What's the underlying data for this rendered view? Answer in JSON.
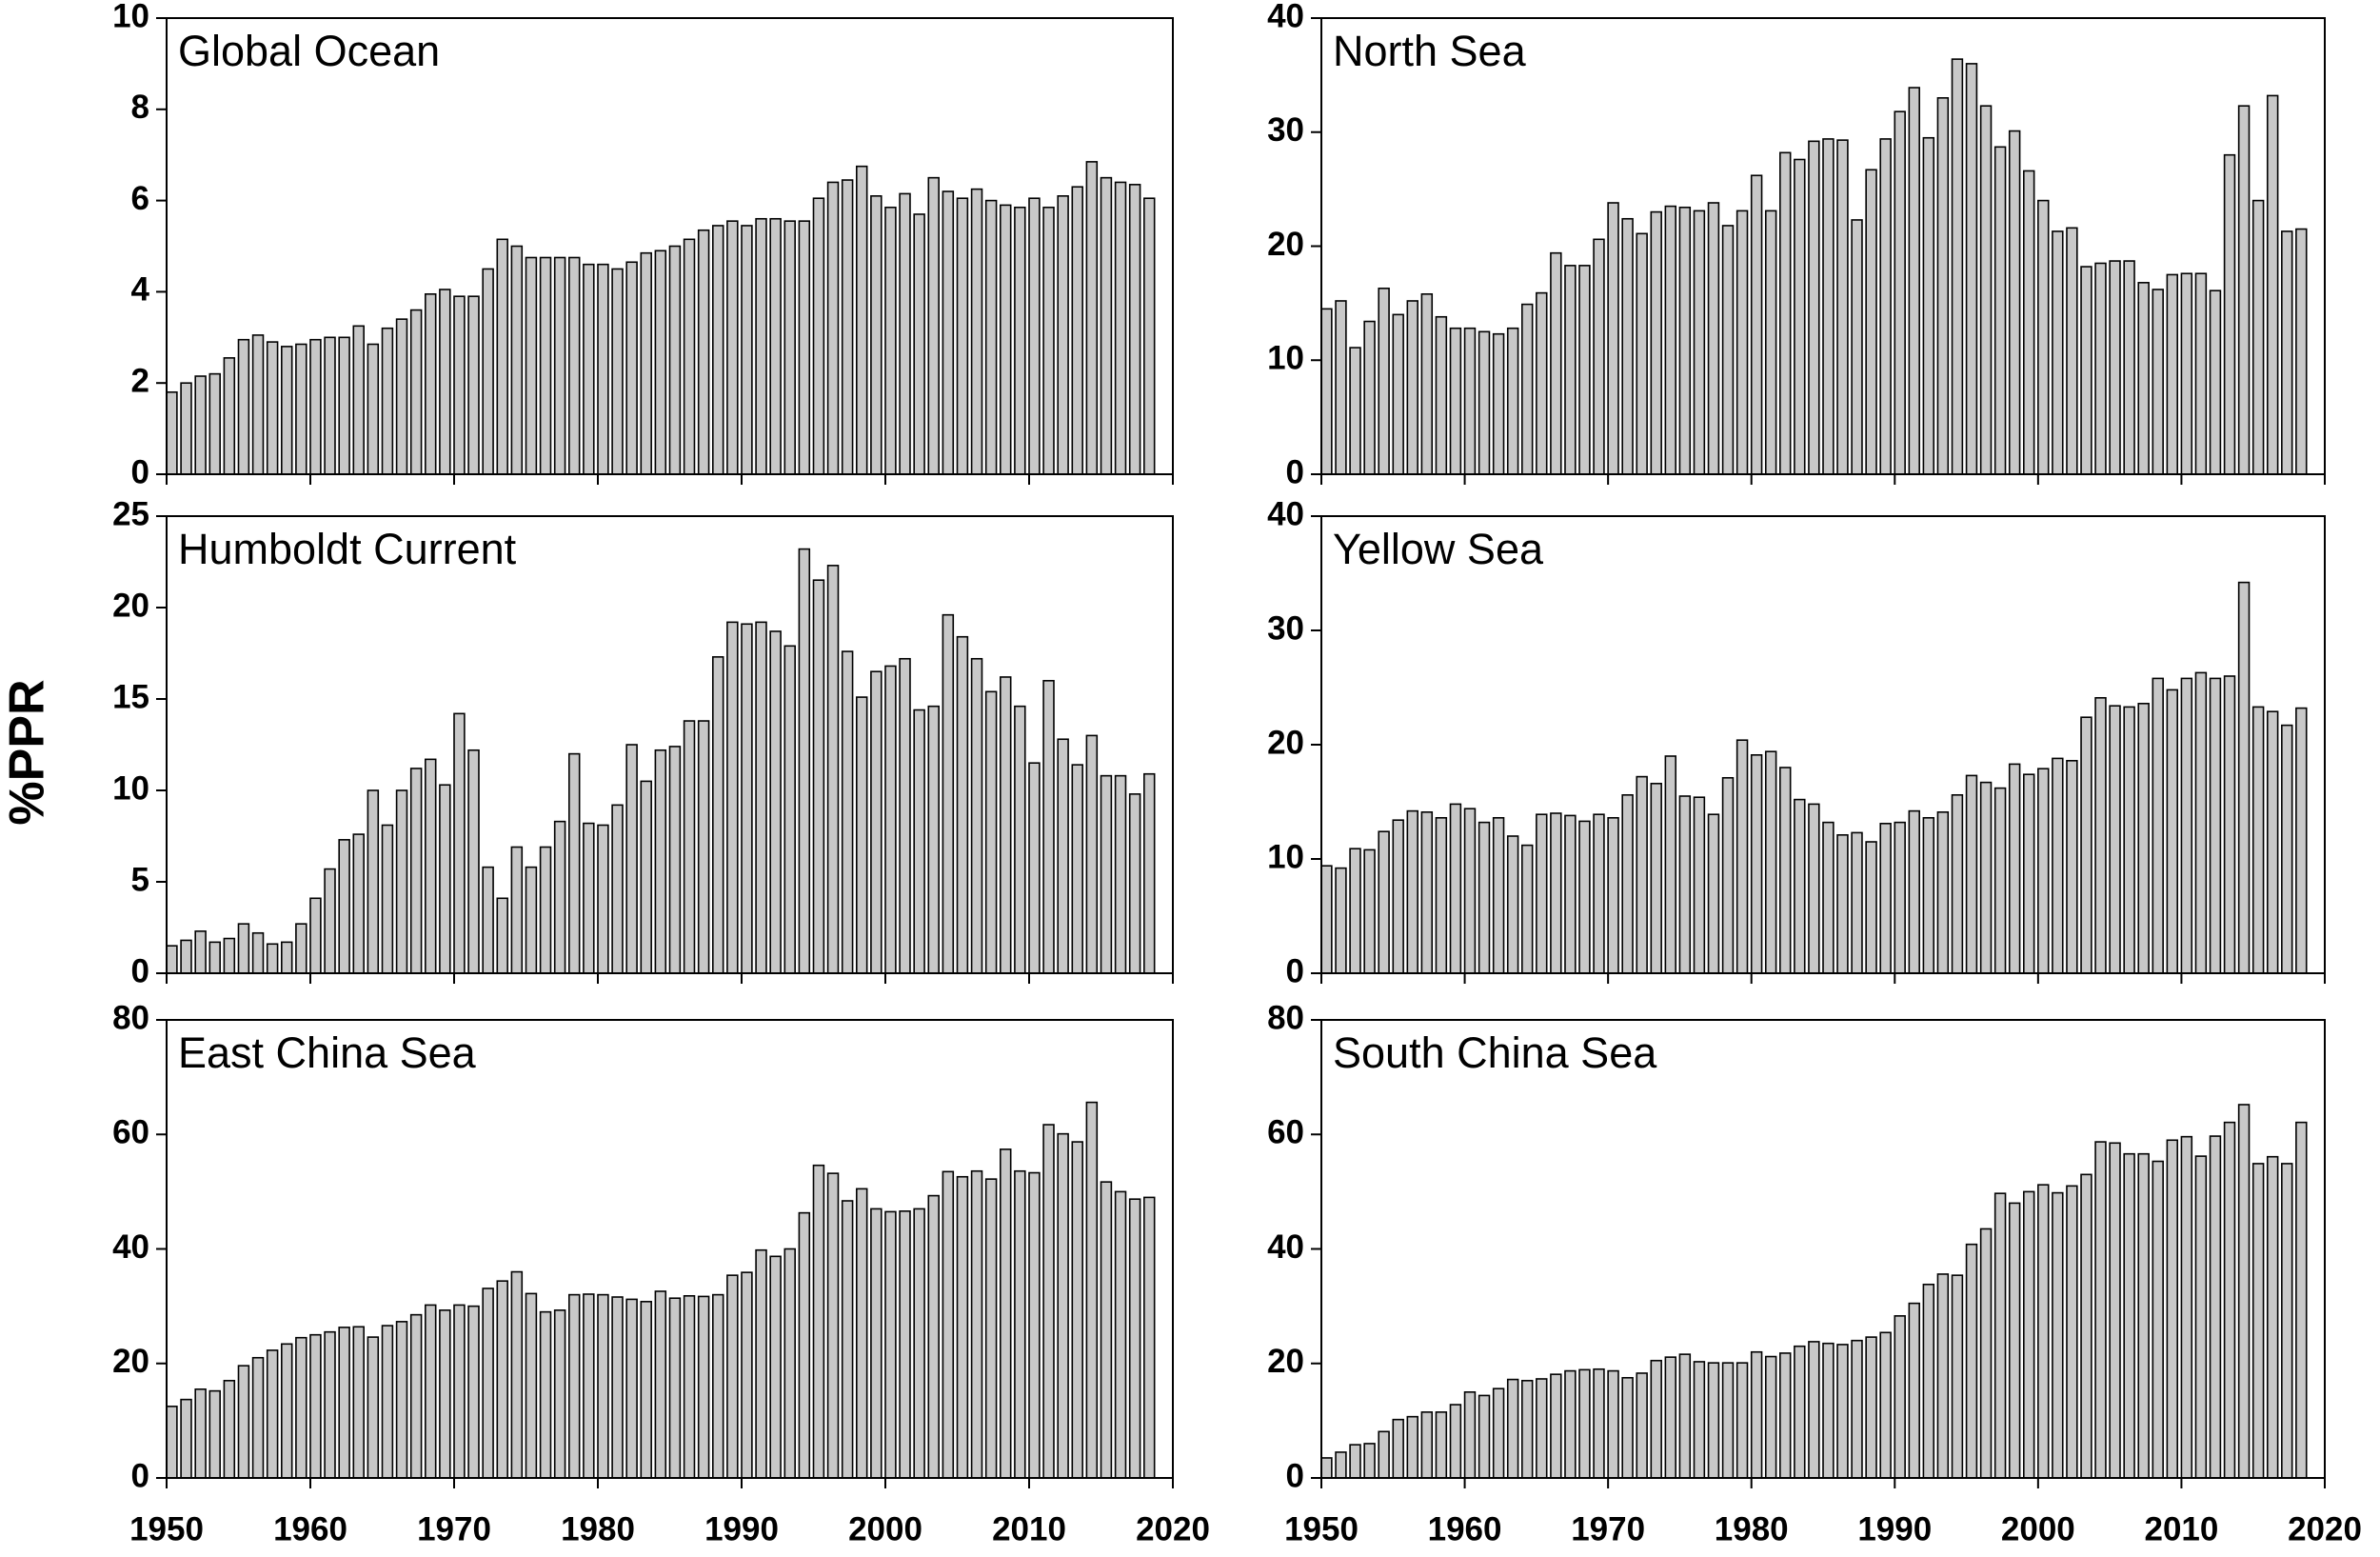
{
  "ylabel": "%PPR",
  "chart_data": [
    {
      "type": "bar",
      "title": "Global Ocean",
      "color": "#c8c8c8",
      "xlim": [
        1950,
        2020
      ],
      "xticks": [
        1950,
        1960,
        1970,
        1980,
        1990,
        2000,
        2010,
        2020
      ],
      "ylim": [
        0,
        10
      ],
      "yticks": [
        0,
        2,
        4,
        6,
        8,
        10
      ],
      "x": [
        1950,
        1951,
        1952,
        1953,
        1954,
        1955,
        1956,
        1957,
        1958,
        1959,
        1960,
        1961,
        1962,
        1963,
        1964,
        1965,
        1966,
        1967,
        1968,
        1969,
        1970,
        1971,
        1972,
        1973,
        1974,
        1975,
        1976,
        1977,
        1978,
        1979,
        1980,
        1981,
        1982,
        1983,
        1984,
        1985,
        1986,
        1987,
        1988,
        1989,
        1990,
        1991,
        1992,
        1993,
        1994,
        1995,
        1996,
        1997,
        1998,
        1999,
        2000,
        2001,
        2002,
        2003,
        2004,
        2005,
        2006,
        2007,
        2008,
        2009,
        2010,
        2011,
        2012,
        2013,
        2014,
        2015,
        2016,
        2017,
        2018
      ],
      "values": [
        1.8,
        2.0,
        2.15,
        2.2,
        2.55,
        2.95,
        3.05,
        2.9,
        2.8,
        2.85,
        2.95,
        3.0,
        3.0,
        3.25,
        2.85,
        3.2,
        3.4,
        3.6,
        3.95,
        4.05,
        3.9,
        3.9,
        4.5,
        5.15,
        5.0,
        4.75,
        4.75,
        4.75,
        4.75,
        4.6,
        4.6,
        4.5,
        4.65,
        4.85,
        4.9,
        5.0,
        5.15,
        5.35,
        5.45,
        5.55,
        5.45,
        5.6,
        5.6,
        5.55,
        5.55,
        6.05,
        6.4,
        6.45,
        6.75,
        6.1,
        5.85,
        6.15,
        5.7,
        6.5,
        6.2,
        6.05,
        6.25,
        6.0,
        5.9,
        5.85,
        6.05,
        5.85,
        6.1,
        6.3,
        6.85,
        6.5,
        6.4,
        6.35,
        6.05
      ]
    },
    {
      "type": "bar",
      "title": "North Sea",
      "color": "#c8c8c8",
      "xlim": [
        1950,
        2020
      ],
      "xticks": [
        1950,
        1960,
        1970,
        1980,
        1990,
        2000,
        2010,
        2020
      ],
      "ylim": [
        0,
        40
      ],
      "yticks": [
        0,
        10,
        20,
        30,
        40
      ],
      "x": [
        1950,
        1951,
        1952,
        1953,
        1954,
        1955,
        1956,
        1957,
        1958,
        1959,
        1960,
        1961,
        1962,
        1963,
        1964,
        1965,
        1966,
        1967,
        1968,
        1969,
        1970,
        1971,
        1972,
        1973,
        1974,
        1975,
        1976,
        1977,
        1978,
        1979,
        1980,
        1981,
        1982,
        1983,
        1984,
        1985,
        1986,
        1987,
        1988,
        1989,
        1990,
        1991,
        1992,
        1993,
        1994,
        1995,
        1996,
        1997,
        1998,
        1999,
        2000,
        2001,
        2002,
        2003,
        2004,
        2005,
        2006,
        2007,
        2008,
        2009,
        2010,
        2011,
        2012,
        2013,
        2014,
        2015,
        2016,
        2017,
        2018
      ],
      "values": [
        14.5,
        15.2,
        11.1,
        13.4,
        16.3,
        14.0,
        15.2,
        15.8,
        13.8,
        12.8,
        12.8,
        12.5,
        12.3,
        12.8,
        14.9,
        15.9,
        19.4,
        18.3,
        18.3,
        20.6,
        23.8,
        22.4,
        21.1,
        23.0,
        23.5,
        23.4,
        23.1,
        23.8,
        21.8,
        23.1,
        26.2,
        23.1,
        28.2,
        27.6,
        29.2,
        29.4,
        29.3,
        22.3,
        26.7,
        29.4,
        31.8,
        33.9,
        29.5,
        33.0,
        36.4,
        36.0,
        32.3,
        28.7,
        30.1,
        26.6,
        24.0,
        21.3,
        21.6,
        18.2,
        18.5,
        18.7,
        18.7,
        16.8,
        16.2,
        17.5,
        17.6,
        17.6,
        16.1,
        28.0,
        32.3,
        24.0,
        33.2,
        21.3,
        21.5
      ]
    },
    {
      "type": "bar",
      "title": "Humboldt Current",
      "color": "#c8c8c8",
      "xlim": [
        1950,
        2020
      ],
      "xticks": [
        1950,
        1960,
        1970,
        1980,
        1990,
        2000,
        2010,
        2020
      ],
      "ylim": [
        0,
        25
      ],
      "yticks": [
        0,
        5,
        10,
        15,
        20,
        25
      ],
      "x": [
        1950,
        1951,
        1952,
        1953,
        1954,
        1955,
        1956,
        1957,
        1958,
        1959,
        1960,
        1961,
        1962,
        1963,
        1964,
        1965,
        1966,
        1967,
        1968,
        1969,
        1970,
        1971,
        1972,
        1973,
        1974,
        1975,
        1976,
        1977,
        1978,
        1979,
        1980,
        1981,
        1982,
        1983,
        1984,
        1985,
        1986,
        1987,
        1988,
        1989,
        1990,
        1991,
        1992,
        1993,
        1994,
        1995,
        1996,
        1997,
        1998,
        1999,
        2000,
        2001,
        2002,
        2003,
        2004,
        2005,
        2006,
        2007,
        2008,
        2009,
        2010,
        2011,
        2012,
        2013,
        2014,
        2015,
        2016,
        2017,
        2018
      ],
      "values": [
        1.5,
        1.8,
        2.3,
        1.7,
        1.9,
        2.7,
        2.2,
        1.6,
        1.7,
        2.7,
        4.1,
        5.7,
        7.3,
        7.6,
        10.0,
        8.1,
        10.0,
        11.2,
        11.7,
        10.3,
        14.2,
        12.2,
        5.8,
        4.1,
        6.9,
        5.8,
        6.9,
        8.3,
        12.0,
        8.2,
        8.1,
        9.2,
        12.5,
        10.5,
        12.2,
        12.4,
        13.8,
        13.8,
        17.3,
        19.2,
        19.1,
        19.2,
        18.7,
        17.9,
        23.2,
        21.5,
        22.3,
        17.6,
        15.1,
        16.5,
        16.8,
        17.2,
        14.4,
        14.6,
        19.6,
        18.4,
        17.2,
        15.4,
        16.2,
        14.6,
        11.5,
        16.0,
        12.8,
        11.4,
        13.0,
        10.8,
        10.8,
        9.8,
        10.9
      ]
    },
    {
      "type": "bar",
      "title": "Yellow Sea",
      "color": "#c8c8c8",
      "xlim": [
        1950,
        2020
      ],
      "xticks": [
        1950,
        1960,
        1970,
        1980,
        1990,
        2000,
        2010,
        2020
      ],
      "ylim": [
        0,
        40
      ],
      "yticks": [
        0,
        10,
        20,
        30,
        40
      ],
      "x": [
        1950,
        1951,
        1952,
        1953,
        1954,
        1955,
        1956,
        1957,
        1958,
        1959,
        1960,
        1961,
        1962,
        1963,
        1964,
        1965,
        1966,
        1967,
        1968,
        1969,
        1970,
        1971,
        1972,
        1973,
        1974,
        1975,
        1976,
        1977,
        1978,
        1979,
        1980,
        1981,
        1982,
        1983,
        1984,
        1985,
        1986,
        1987,
        1988,
        1989,
        1990,
        1991,
        1992,
        1993,
        1994,
        1995,
        1996,
        1997,
        1998,
        1999,
        2000,
        2001,
        2002,
        2003,
        2004,
        2005,
        2006,
        2007,
        2008,
        2009,
        2010,
        2011,
        2012,
        2013,
        2014,
        2015,
        2016,
        2017,
        2018
      ],
      "values": [
        9.4,
        9.2,
        10.9,
        10.8,
        12.4,
        13.4,
        14.2,
        14.1,
        13.6,
        14.8,
        14.4,
        13.2,
        13.6,
        12.0,
        11.2,
        13.9,
        14.0,
        13.8,
        13.3,
        13.9,
        13.6,
        15.6,
        17.2,
        16.6,
        19.0,
        15.5,
        15.4,
        13.9,
        17.1,
        20.4,
        19.1,
        19.4,
        18.0,
        15.2,
        14.8,
        13.2,
        12.1,
        12.3,
        11.5,
        13.1,
        13.2,
        14.2,
        13.6,
        14.1,
        15.6,
        17.3,
        16.7,
        16.2,
        18.3,
        17.4,
        17.9,
        18.8,
        18.6,
        22.4,
        24.1,
        23.4,
        23.3,
        23.6,
        25.8,
        24.8,
        25.8,
        26.3,
        25.8,
        26.0,
        34.2,
        23.3,
        22.9,
        21.7,
        23.2
      ]
    },
    {
      "type": "bar",
      "title": "East China Sea",
      "color": "#c8c8c8",
      "xlim": [
        1950,
        2020
      ],
      "xticks": [
        1950,
        1960,
        1970,
        1980,
        1990,
        2000,
        2010,
        2020
      ],
      "ylim": [
        0,
        80
      ],
      "yticks": [
        0,
        20,
        40,
        60,
        80
      ],
      "x": [
        1950,
        1951,
        1952,
        1953,
        1954,
        1955,
        1956,
        1957,
        1958,
        1959,
        1960,
        1961,
        1962,
        1963,
        1964,
        1965,
        1966,
        1967,
        1968,
        1969,
        1970,
        1971,
        1972,
        1973,
        1974,
        1975,
        1976,
        1977,
        1978,
        1979,
        1980,
        1981,
        1982,
        1983,
        1984,
        1985,
        1986,
        1987,
        1988,
        1989,
        1990,
        1991,
        1992,
        1993,
        1994,
        1995,
        1996,
        1997,
        1998,
        1999,
        2000,
        2001,
        2002,
        2003,
        2004,
        2005,
        2006,
        2007,
        2008,
        2009,
        2010,
        2011,
        2012,
        2013,
        2014,
        2015,
        2016,
        2017,
        2018
      ],
      "values": [
        12.5,
        13.7,
        15.5,
        15.2,
        17.0,
        19.6,
        21.0,
        22.3,
        23.4,
        24.5,
        25.0,
        25.5,
        26.3,
        26.4,
        24.6,
        26.6,
        27.3,
        28.5,
        30.2,
        29.3,
        30.2,
        30.0,
        33.1,
        34.4,
        36.0,
        32.2,
        29.0,
        29.3,
        32.0,
        32.1,
        32.0,
        31.6,
        31.2,
        30.8,
        32.6,
        31.4,
        31.8,
        31.7,
        32.0,
        35.4,
        35.9,
        39.8,
        38.7,
        40.0,
        46.3,
        54.6,
        53.2,
        48.4,
        50.5,
        47.0,
        46.5,
        46.6,
        47.0,
        49.3,
        53.5,
        52.6,
        53.6,
        52.2,
        57.4,
        53.6,
        53.3,
        61.7,
        60.1,
        58.7,
        65.6,
        51.7,
        50.0,
        48.7,
        49.0
      ]
    },
    {
      "type": "bar",
      "title": "South China Sea",
      "color": "#c8c8c8",
      "xlim": [
        1950,
        2020
      ],
      "xticks": [
        1950,
        1960,
        1970,
        1980,
        1990,
        2000,
        2010,
        2020
      ],
      "ylim": [
        0,
        80
      ],
      "yticks": [
        0,
        20,
        40,
        60,
        80
      ],
      "x": [
        1950,
        1951,
        1952,
        1953,
        1954,
        1955,
        1956,
        1957,
        1958,
        1959,
        1960,
        1961,
        1962,
        1963,
        1964,
        1965,
        1966,
        1967,
        1968,
        1969,
        1970,
        1971,
        1972,
        1973,
        1974,
        1975,
        1976,
        1977,
        1978,
        1979,
        1980,
        1981,
        1982,
        1983,
        1984,
        1985,
        1986,
        1987,
        1988,
        1989,
        1990,
        1991,
        1992,
        1993,
        1994,
        1995,
        1996,
        1997,
        1998,
        1999,
        2000,
        2001,
        2002,
        2003,
        2004,
        2005,
        2006,
        2007,
        2008,
        2009,
        2010,
        2011,
        2012,
        2013,
        2014,
        2015,
        2016,
        2017,
        2018
      ],
      "values": [
        3.5,
        4.5,
        5.8,
        6.0,
        8.1,
        10.2,
        10.7,
        11.5,
        11.5,
        12.8,
        15.0,
        14.4,
        15.6,
        17.2,
        17.0,
        17.3,
        18.1,
        18.7,
        18.9,
        19.0,
        18.7,
        17.5,
        18.3,
        20.5,
        21.1,
        21.6,
        20.3,
        20.1,
        20.1,
        20.1,
        22.0,
        21.2,
        21.8,
        23.0,
        23.8,
        23.5,
        23.3,
        24.0,
        24.6,
        25.4,
        28.3,
        30.5,
        33.8,
        35.6,
        35.4,
        40.8,
        43.5,
        49.7,
        48.0,
        50.0,
        51.2,
        49.8,
        51.0,
        53.0,
        58.7,
        58.5,
        56.6,
        56.6,
        55.3,
        59.0,
        59.6,
        56.2,
        59.7,
        62.1,
        65.2,
        54.9,
        56.1,
        54.9,
        62.1
      ]
    }
  ]
}
